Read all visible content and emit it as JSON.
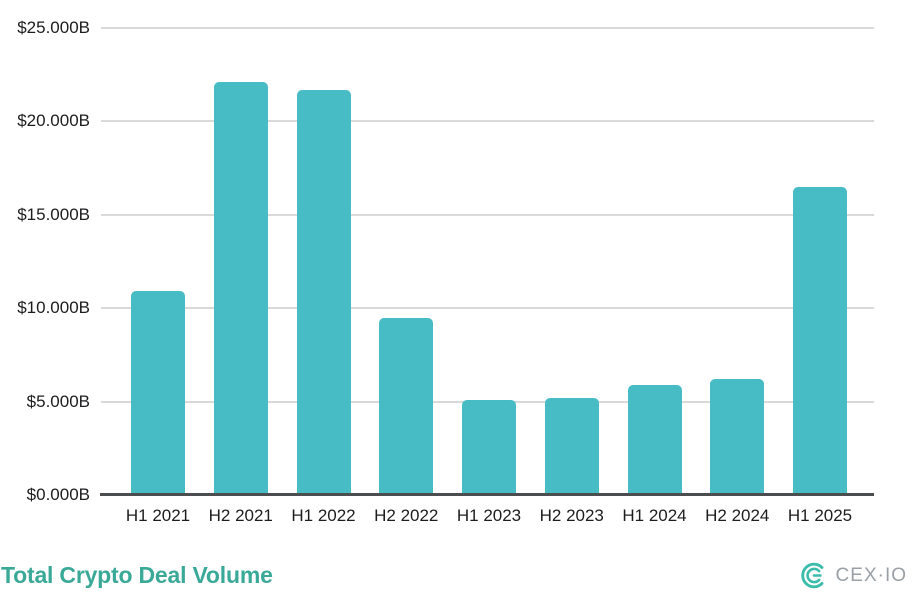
{
  "chart_data": {
    "type": "bar",
    "title": "Total Crypto Deal Volume",
    "categories": [
      "H1 2021",
      "H2 2021",
      "H1 2022",
      "H2 2022",
      "H1 2023",
      "H2 2023",
      "H1 2024",
      "H2 2024",
      "H1 2025"
    ],
    "values": [
      10.9,
      22.1,
      21.7,
      9.5,
      5.1,
      5.2,
      5.9,
      6.2,
      16.5
    ],
    "xlabel": "",
    "ylabel": "",
    "ylim": [
      0,
      25
    ],
    "y_ticks": [
      {
        "value": 25,
        "label": "$25.000B"
      },
      {
        "value": 20,
        "label": "$20.000B"
      },
      {
        "value": 15,
        "label": "$15.000B"
      },
      {
        "value": 10,
        "label": "$10.000B"
      },
      {
        "value": 5,
        "label": "$5.000B"
      },
      {
        "value": 0,
        "label": "$0.000B"
      }
    ],
    "grid": "horizontal",
    "legend": "none",
    "bar_color": "#48bcc5",
    "gridline_color": "#d9d9d9",
    "axis_line_color": "#4b4d4f",
    "tick_label_color": "#1d1d1f"
  },
  "footer": {
    "title_color": "#3aa998",
    "logo": {
      "text": "CEX·IO",
      "mark_icon": "cexio-logo-mark",
      "mark_color": "#3cbcab",
      "text_color": "#9aa0a6"
    }
  }
}
